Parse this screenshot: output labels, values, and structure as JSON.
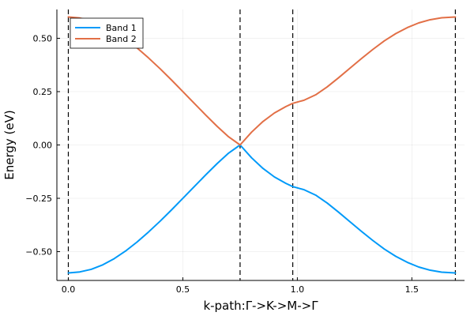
{
  "chart_data": {
    "type": "line",
    "xlabel": "k-path:Γ->K->M->Γ",
    "ylabel": "Energy (eV)",
    "xlim": [
      -0.05,
      1.73
    ],
    "ylim": [
      -0.635,
      0.635
    ],
    "xticks": [
      0.0,
      0.5,
      1.0,
      1.5
    ],
    "xtick_labels": [
      "0.0",
      "0.5",
      "1.0",
      "1.5"
    ],
    "yticks": [
      -0.5,
      -0.25,
      0.0,
      0.25,
      0.5
    ],
    "ytick_labels": [
      "−0.50",
      "−0.25",
      "0.00",
      "0.25",
      "0.50"
    ],
    "grid": true,
    "legend_position": "top-left",
    "vlines": [
      0.0,
      0.75,
      0.98,
      1.69
    ],
    "series": [
      {
        "name": "Band 1",
        "color": "#009af9",
        "x": [
          0.0,
          0.05,
          0.1,
          0.15,
          0.2,
          0.25,
          0.3,
          0.35,
          0.4,
          0.45,
          0.5,
          0.55,
          0.6,
          0.65,
          0.7,
          0.75,
          0.8,
          0.85,
          0.9,
          0.95,
          0.98,
          1.03,
          1.08,
          1.13,
          1.18,
          1.23,
          1.28,
          1.33,
          1.38,
          1.43,
          1.48,
          1.53,
          1.58,
          1.63,
          1.69
        ],
        "y": [
          -0.6,
          -0.595,
          -0.583,
          -0.562,
          -0.533,
          -0.497,
          -0.455,
          -0.408,
          -0.358,
          -0.305,
          -0.25,
          -0.195,
          -0.14,
          -0.087,
          -0.038,
          0.0,
          -0.06,
          -0.11,
          -0.15,
          -0.18,
          -0.195,
          -0.21,
          -0.235,
          -0.272,
          -0.315,
          -0.36,
          -0.405,
          -0.448,
          -0.488,
          -0.522,
          -0.55,
          -0.572,
          -0.587,
          -0.596,
          -0.6
        ]
      },
      {
        "name": "Band 2",
        "color": "#e26f46",
        "x": [
          0.0,
          0.05,
          0.1,
          0.15,
          0.2,
          0.25,
          0.3,
          0.35,
          0.4,
          0.45,
          0.5,
          0.55,
          0.6,
          0.65,
          0.7,
          0.75,
          0.8,
          0.85,
          0.9,
          0.95,
          0.98,
          1.03,
          1.08,
          1.13,
          1.18,
          1.23,
          1.28,
          1.33,
          1.38,
          1.43,
          1.48,
          1.53,
          1.58,
          1.63,
          1.69
        ],
        "y": [
          0.6,
          0.595,
          0.583,
          0.562,
          0.533,
          0.497,
          0.455,
          0.408,
          0.358,
          0.305,
          0.25,
          0.195,
          0.14,
          0.087,
          0.038,
          0.0,
          0.06,
          0.11,
          0.15,
          0.18,
          0.195,
          0.21,
          0.235,
          0.272,
          0.315,
          0.36,
          0.405,
          0.448,
          0.488,
          0.522,
          0.55,
          0.572,
          0.587,
          0.596,
          0.6
        ]
      }
    ]
  }
}
